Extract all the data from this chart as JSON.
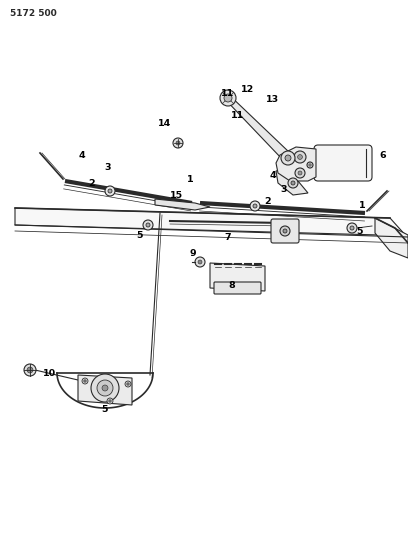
{
  "title": "5172 500",
  "bg_color": "#ffffff",
  "lc": "#2a2a2a",
  "fig_width": 4.08,
  "fig_height": 5.33,
  "dpi": 100,
  "labels": [
    [
      355,
      455,
      "6"
    ],
    [
      214,
      468,
      "11"
    ],
    [
      235,
      445,
      "11"
    ],
    [
      240,
      472,
      "12"
    ],
    [
      262,
      461,
      "13"
    ],
    [
      163,
      452,
      "14"
    ],
    [
      94,
      372,
      "4"
    ],
    [
      118,
      360,
      "3"
    ],
    [
      100,
      346,
      "2"
    ],
    [
      186,
      348,
      "1"
    ],
    [
      177,
      333,
      "15"
    ],
    [
      258,
      357,
      "4"
    ],
    [
      272,
      342,
      "3"
    ],
    [
      255,
      328,
      "2"
    ],
    [
      343,
      322,
      "1"
    ],
    [
      133,
      302,
      "5"
    ],
    [
      222,
      299,
      "7"
    ],
    [
      343,
      304,
      "5"
    ],
    [
      184,
      271,
      "9"
    ],
    [
      219,
      252,
      "8"
    ],
    [
      52,
      161,
      "10"
    ],
    [
      105,
      126,
      "5"
    ]
  ]
}
